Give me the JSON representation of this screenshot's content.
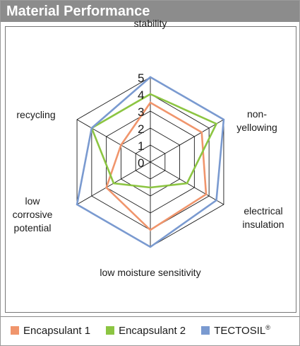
{
  "header": {
    "title": "Material Performance"
  },
  "chart_data": {
    "type": "radar",
    "axes": [
      "stability",
      "non-\nyellowing",
      "electrical\ninsulation",
      "low moisture sensitivity",
      "low\ncorrosive\npotential",
      "recycling"
    ],
    "ticks": [
      "0",
      "1",
      "2",
      "3",
      "4",
      "5"
    ],
    "rmax": 5,
    "grid": true,
    "legend_position": "bottom",
    "series": [
      {
        "name": "Encapsulant 1",
        "color": "#f0956c",
        "values": [
          3.5,
          3.5,
          3.8,
          4.0,
          3.0,
          2.0
        ]
      },
      {
        "name": "Encapsulant 2",
        "color": "#8cc542",
        "values": [
          4.0,
          4.5,
          2.5,
          1.5,
          2.5,
          4.0
        ]
      },
      {
        "name": "TECTOSIL",
        "name_suffix": "®",
        "color": "#7a9ad0",
        "values": [
          5.0,
          5.0,
          4.5,
          5.0,
          5.0,
          4.0
        ]
      }
    ]
  }
}
